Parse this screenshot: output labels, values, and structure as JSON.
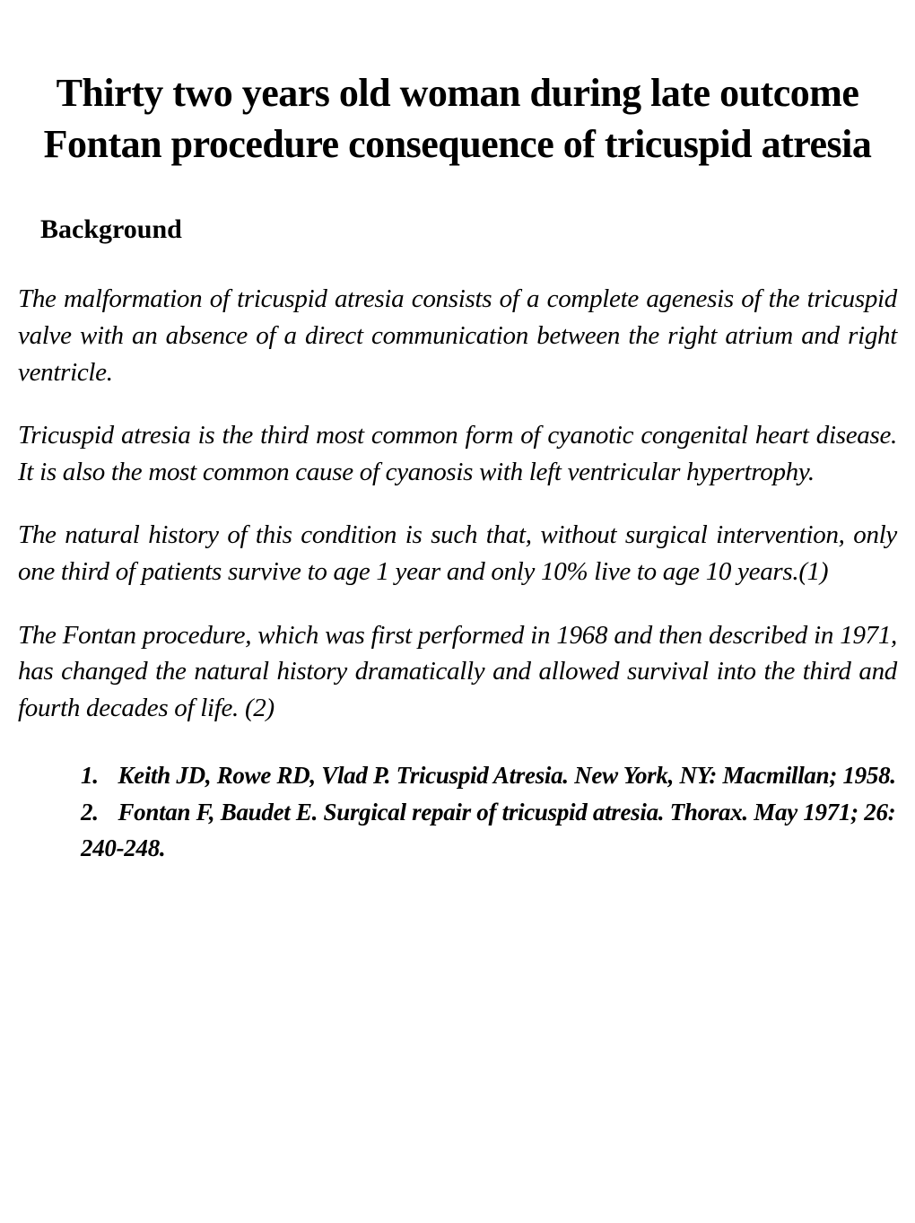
{
  "title": "Thirty two years old woman during late outcome  Fontan procedure consequence of tricuspid atresia",
  "sectionHeading": "Background",
  "paragraphs": {
    "p1": "The malformation of tricuspid atresia consists of a complete agenesis of the tricuspid valve with an absence of a direct communication between the right atrium and right ventricle.",
    "p2": "Tricuspid atresia is the third most common form of cyanotic congenital heart disease. It is also the most common cause of cyanosis with left ventricular hypertrophy.",
    "p3": "The natural history of this condition is such that, without surgical intervention, only one third of patients survive to age 1 year and only 10% live to age 10 years.(1)",
    "p4": "The Fontan procedure, which was first performed in 1968 and then described in 1971, has changed the natural history dramatically and allowed survival into the third and fourth decades of life. (2)"
  },
  "references": {
    "ref1": {
      "number": "1.",
      "text": "Keith JD, Rowe RD, Vlad P. Tricuspid Atresia. New York, NY: Macmillan; 1958."
    },
    "ref2": {
      "number": "2.",
      "text": "Fontan F, Baudet E. Surgical repair of tricuspid atresia. Thorax. May 1971; 26: 240-248."
    }
  },
  "styling": {
    "backgroundColor": "#ffffff",
    "textColor": "#000000",
    "titleFontSize": 44,
    "headingFontSize": 30,
    "bodyFontSize": 29,
    "referenceFontSize": 27,
    "fontFamily": "Times New Roman"
  }
}
